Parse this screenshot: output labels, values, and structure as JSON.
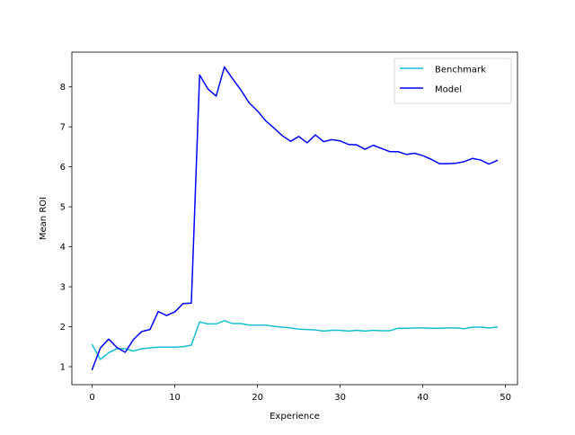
{
  "chart_data": {
    "type": "line",
    "title": "",
    "xlabel": "Experience",
    "ylabel": "Mean ROI",
    "xlim": [
      -2.45,
      51.45
    ],
    "ylim": [
      0.55,
      8.87
    ],
    "xticks": [
      0,
      10,
      20,
      30,
      40,
      50
    ],
    "yticks": [
      1,
      2,
      3,
      4,
      5,
      6,
      7,
      8
    ],
    "grid": false,
    "legend_position": "top-right",
    "x": [
      0,
      1,
      2,
      3,
      4,
      5,
      6,
      7,
      8,
      9,
      10,
      11,
      12,
      13,
      14,
      15,
      16,
      17,
      18,
      19,
      20,
      21,
      22,
      23,
      24,
      25,
      26,
      27,
      28,
      29,
      30,
      31,
      32,
      33,
      34,
      35,
      36,
      37,
      38,
      39,
      40,
      41,
      42,
      43,
      44,
      45,
      46,
      47,
      48,
      49
    ],
    "series": [
      {
        "name": "Benchmark",
        "color": "#17becf",
        "values": [
          1.55,
          1.18,
          1.35,
          1.45,
          1.45,
          1.39,
          1.45,
          1.47,
          1.49,
          1.49,
          1.49,
          1.5,
          1.54,
          2.12,
          2.07,
          2.07,
          2.15,
          2.08,
          2.08,
          2.04,
          2.04,
          2.04,
          2.01,
          1.99,
          1.97,
          1.94,
          1.93,
          1.92,
          1.89,
          1.91,
          1.91,
          1.89,
          1.91,
          1.89,
          1.91,
          1.9,
          1.9,
          1.96,
          1.96,
          1.97,
          1.97,
          1.96,
          1.96,
          1.97,
          1.97,
          1.95,
          1.99,
          1.99,
          1.97,
          1.99
        ]
      },
      {
        "name": "Model",
        "color": "#0000ff",
        "values": [
          0.93,
          1.47,
          1.69,
          1.48,
          1.36,
          1.68,
          1.88,
          1.93,
          2.38,
          2.28,
          2.37,
          2.58,
          2.59,
          8.3,
          7.95,
          7.77,
          8.5,
          8.2,
          7.92,
          7.6,
          7.4,
          7.15,
          6.97,
          6.78,
          6.64,
          6.76,
          6.6,
          6.8,
          6.63,
          6.68,
          6.65,
          6.56,
          6.55,
          6.44,
          6.54,
          6.46,
          6.38,
          6.38,
          6.31,
          6.34,
          6.28,
          6.19,
          6.08,
          6.08,
          6.09,
          6.13,
          6.21,
          6.17,
          6.07,
          6.16
        ]
      }
    ]
  }
}
